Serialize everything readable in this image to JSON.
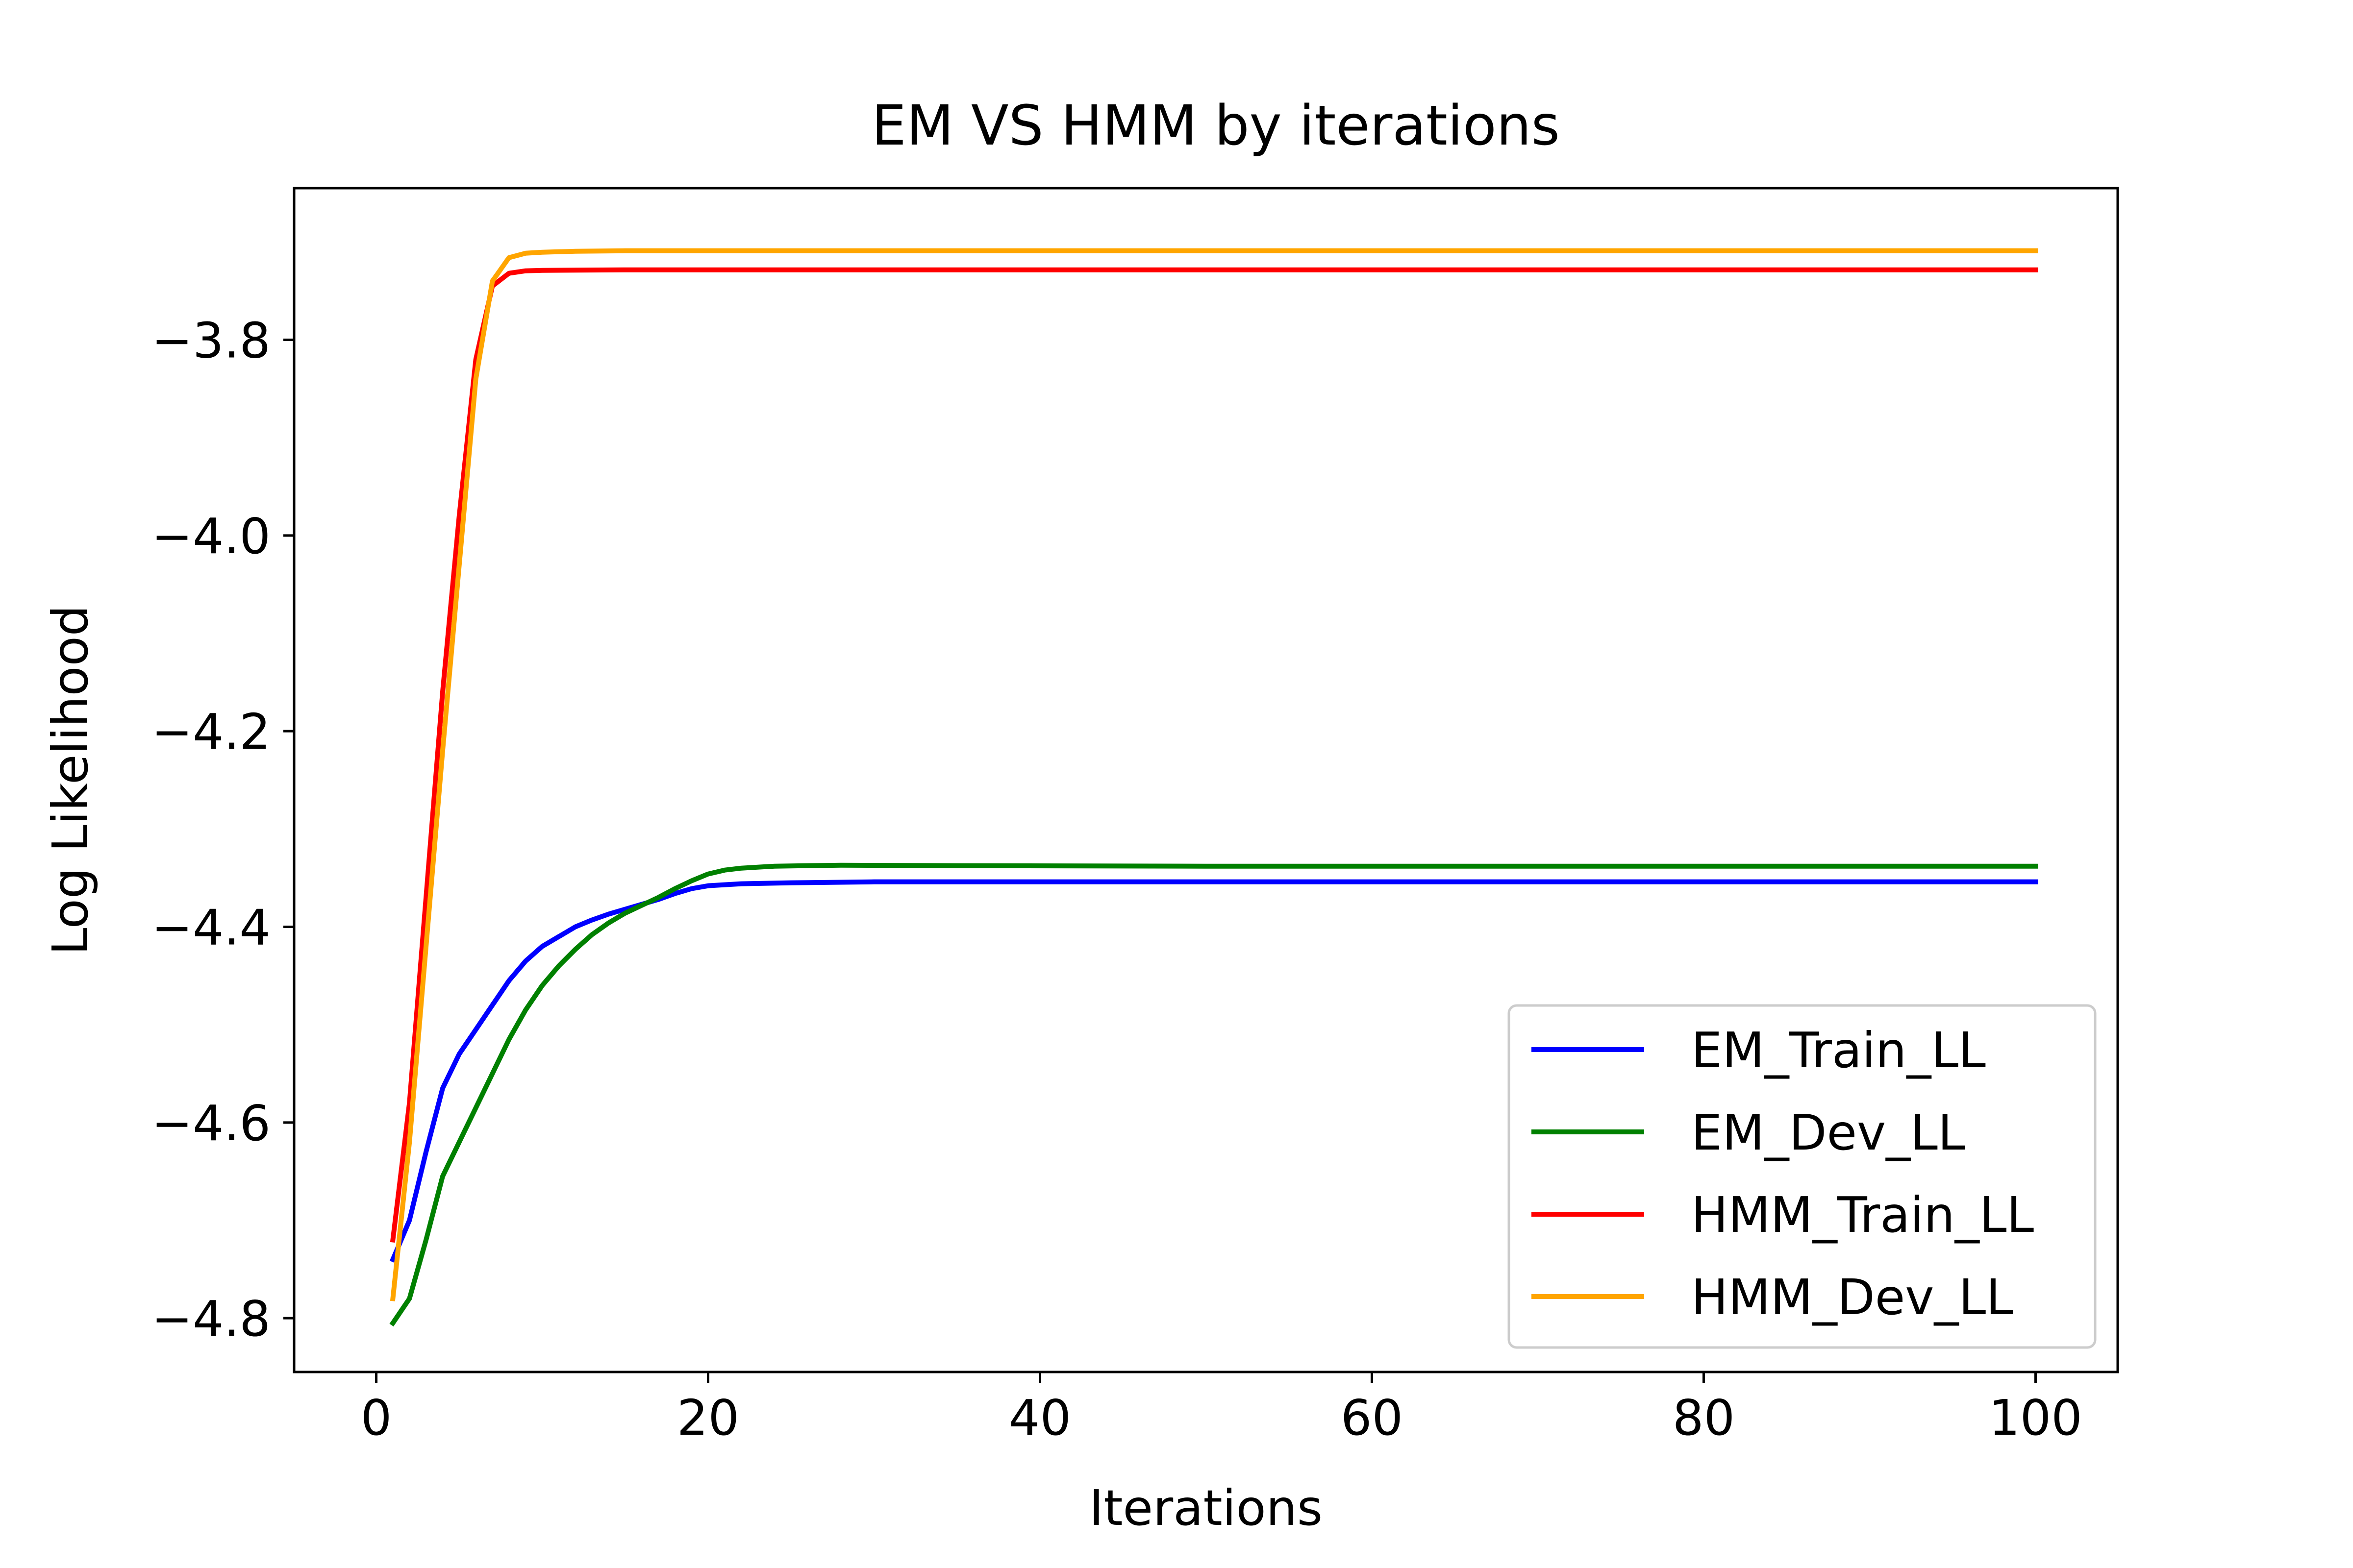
{
  "chart_data": {
    "type": "line",
    "title": "EM VS HMM by iterations",
    "xlabel": "Iterations",
    "ylabel": "Log Likelihood",
    "xlim": [
      -4.95,
      104.95
    ],
    "ylim": [
      -4.855,
      -3.645
    ],
    "xticks": [
      0,
      20,
      40,
      60,
      80,
      100
    ],
    "xtick_labels": [
      "0",
      "20",
      "40",
      "60",
      "80",
      "100"
    ],
    "yticks": [
      -4.8,
      -4.6,
      -4.4,
      -4.2,
      -4.0,
      -3.8
    ],
    "ytick_labels": [
      "−4.8",
      "−4.6",
      "−4.4",
      "−4.2",
      "−4.0",
      "−3.8"
    ],
    "grid": false,
    "legend_position": "lower-right",
    "x_max": 100,
    "series": [
      {
        "name": "EM_Train_LL",
        "color": "#0000ff",
        "points": [
          [
            1,
            -4.74
          ],
          [
            2,
            -4.7
          ],
          [
            3,
            -4.63
          ],
          [
            4,
            -4.565
          ],
          [
            5,
            -4.53
          ],
          [
            6,
            -4.505
          ],
          [
            7,
            -4.48
          ],
          [
            8,
            -4.455
          ],
          [
            9,
            -4.435
          ],
          [
            10,
            -4.42
          ],
          [
            11,
            -4.41
          ],
          [
            12,
            -4.4
          ],
          [
            13,
            -4.393
          ],
          [
            14,
            -4.387
          ],
          [
            15,
            -4.382
          ],
          [
            16,
            -4.377
          ],
          [
            17,
            -4.372
          ],
          [
            18,
            -4.366
          ],
          [
            19,
            -4.361
          ],
          [
            20,
            -4.358
          ],
          [
            22,
            -4.356
          ],
          [
            25,
            -4.355
          ],
          [
            30,
            -4.354
          ],
          [
            40,
            -4.354
          ],
          [
            60,
            -4.354
          ],
          [
            80,
            -4.354
          ],
          [
            100,
            -4.354
          ]
        ]
      },
      {
        "name": "EM_Dev_LL",
        "color": "#008000",
        "points": [
          [
            1,
            -4.805
          ],
          [
            2,
            -4.78
          ],
          [
            3,
            -4.72
          ],
          [
            4,
            -4.655
          ],
          [
            5,
            -4.62
          ],
          [
            6,
            -4.585
          ],
          [
            7,
            -4.55
          ],
          [
            8,
            -4.515
          ],
          [
            9,
            -4.485
          ],
          [
            10,
            -4.46
          ],
          [
            11,
            -4.44
          ],
          [
            12,
            -4.423
          ],
          [
            13,
            -4.408
          ],
          [
            14,
            -4.396
          ],
          [
            15,
            -4.386
          ],
          [
            16,
            -4.378
          ],
          [
            17,
            -4.37
          ],
          [
            18,
            -4.361
          ],
          [
            19,
            -4.353
          ],
          [
            20,
            -4.346
          ],
          [
            21,
            -4.342
          ],
          [
            22,
            -4.34
          ],
          [
            24,
            -4.338
          ],
          [
            28,
            -4.337
          ],
          [
            35,
            -4.3375
          ],
          [
            50,
            -4.338
          ],
          [
            70,
            -4.338
          ],
          [
            100,
            -4.338
          ]
        ]
      },
      {
        "name": "HMM_Train_LL",
        "color": "#ff0000",
        "points": [
          [
            1,
            -4.72
          ],
          [
            2,
            -4.58
          ],
          [
            3,
            -4.37
          ],
          [
            4,
            -4.16
          ],
          [
            5,
            -3.98
          ],
          [
            6,
            -3.82
          ],
          [
            7,
            -3.745
          ],
          [
            8,
            -3.732
          ],
          [
            9,
            -3.7295
          ],
          [
            10,
            -3.729
          ],
          [
            15,
            -3.7285
          ],
          [
            20,
            -3.7285
          ],
          [
            40,
            -3.7285
          ],
          [
            60,
            -3.7285
          ],
          [
            80,
            -3.7285
          ],
          [
            100,
            -3.7285
          ]
        ]
      },
      {
        "name": "HMM_Dev_LL",
        "color": "#ffa500",
        "points": [
          [
            1,
            -4.78
          ],
          [
            2,
            -4.62
          ],
          [
            3,
            -4.42
          ],
          [
            4,
            -4.22
          ],
          [
            5,
            -4.03
          ],
          [
            6,
            -3.84
          ],
          [
            7,
            -3.74
          ],
          [
            8,
            -3.716
          ],
          [
            9,
            -3.7115
          ],
          [
            10,
            -3.7105
          ],
          [
            12,
            -3.7095
          ],
          [
            15,
            -3.709
          ],
          [
            20,
            -3.709
          ],
          [
            40,
            -3.709
          ],
          [
            60,
            -3.709
          ],
          [
            80,
            -3.709
          ],
          [
            100,
            -3.709
          ]
        ]
      }
    ]
  }
}
